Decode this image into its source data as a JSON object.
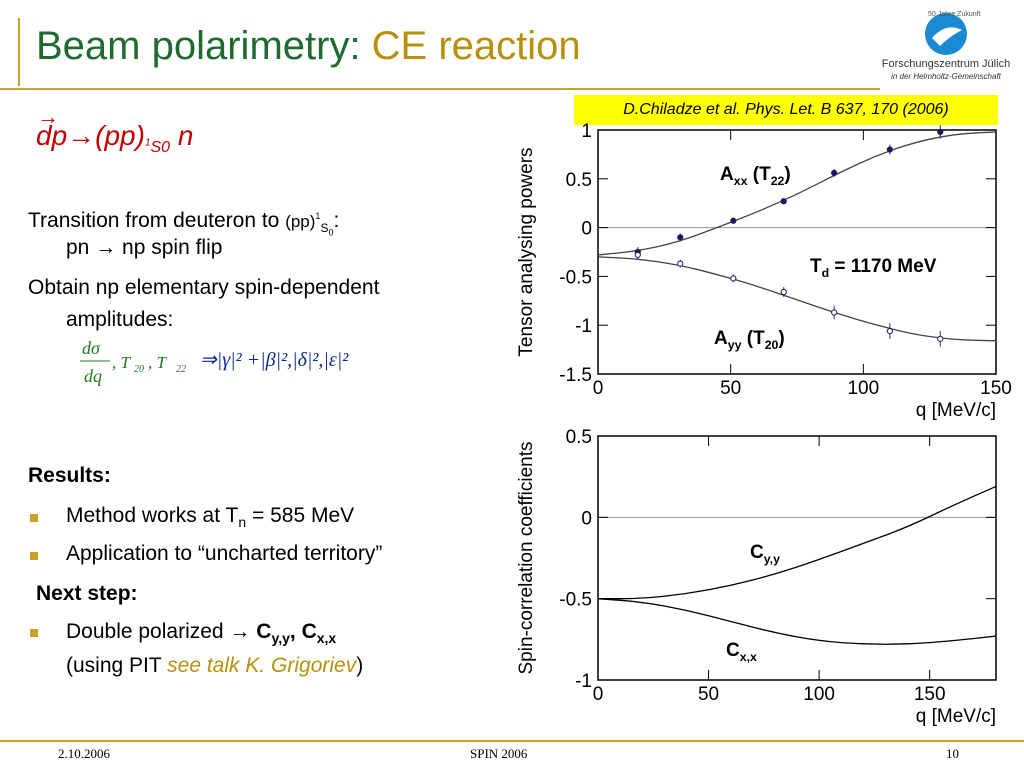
{
  "header": {
    "title_main": "Beam polarimetry: ",
    "title_accent": "CE reaction",
    "logo_name": "Forschungszentrum Jülich",
    "logo_sub": "in der Helmholtz-Gemeinschaft",
    "logo_badge": "50 Jahre Zukunft"
  },
  "reaction": {
    "lhs": "dp→(pp)",
    "state_sup": "1",
    "state_sub": "S0",
    "rhs": " n"
  },
  "body": {
    "transition_text": "Transition from deuteron to ",
    "transition_small": "(pp)",
    "transition_sup": "1",
    "transition_sub": "S",
    "transition_sub0": "0",
    "transition_colon": ":",
    "spin_flip": "pn → np spin flip",
    "obtain_line1": "Obtain np elementary spin-dependent",
    "obtain_line2": "amplitudes:",
    "formula_num": "dσ",
    "formula_den": "dq",
    "formula_t20": ", T",
    "formula_t20_sub": "20",
    "formula_t22": " ,  T",
    "formula_t22_sub": "22",
    "formula_rhs": "⇒|γ|² +|β|²,|δ|²,|ε|²"
  },
  "results": {
    "heading": "Results:",
    "bullet1": "Method works at T",
    "bullet1_sub": "n",
    "bullet1_tail": " = 585 MeV",
    "bullet2": "Application to “uncharted territory”",
    "next_heading": "Next step:",
    "bullet3": "Double polarized → ",
    "bullet3_c1": "C",
    "bullet3_c1_sub": "y,y",
    "bullet3_comma": ", ",
    "bullet3_c2": "C",
    "bullet3_c2_sub": "x,x",
    "bullet3b_open": "(using PIT ",
    "bullet3b_talk": "see talk K. Grigoriev",
    "bullet3b_close": ")"
  },
  "citation": "D.Chiladze et al. Phys. Let. B 637, 170 (2006)",
  "footer": {
    "date": "2.10.2006",
    "conference": "SPIN 2006",
    "page": "10"
  },
  "chart_data": [
    {
      "type": "line",
      "ylabel": "Tensor analysing powers",
      "xlabel": "q [MeV/c]",
      "xlim": [
        0,
        150
      ],
      "ylim": [
        -1.5,
        1.0
      ],
      "xticks": [
        0,
        50,
        100,
        150
      ],
      "yticks": [
        -1.5,
        -1,
        -0.5,
        0,
        0.5,
        1
      ],
      "annotation": "T",
      "annotation_sub": "d",
      "annotation_tail": " = 1170 MeV",
      "series": [
        {
          "name": "A",
          "name_sub": "xx",
          "name_tail": " (T",
          "name_sub2": "22",
          "name_close": ")",
          "x": [
            0,
            15,
            30,
            45,
            60,
            75,
            90,
            105,
            120,
            135,
            150
          ],
          "y": [
            -0.28,
            -0.24,
            -0.15,
            0.0,
            0.16,
            0.34,
            0.55,
            0.74,
            0.88,
            0.96,
            0.98
          ],
          "points_x": [
            15,
            31,
            51,
            70,
            89,
            110,
            129
          ],
          "points_y": [
            -0.25,
            -0.1,
            0.07,
            0.27,
            0.56,
            0.8,
            0.98
          ],
          "points_err": [
            0.05,
            0.04,
            0.03,
            0.03,
            0.04,
            0.05,
            0.07
          ]
        },
        {
          "name": "A",
          "name_sub": "yy",
          "name_tail": " (T",
          "name_sub2": "20",
          "name_close": ")",
          "x": [
            0,
            15,
            30,
            45,
            60,
            75,
            90,
            105,
            120,
            135,
            150
          ],
          "y": [
            -0.3,
            -0.32,
            -0.38,
            -0.48,
            -0.6,
            -0.74,
            -0.88,
            -1.0,
            -1.1,
            -1.15,
            -1.16
          ],
          "points_x": [
            15,
            31,
            51,
            70,
            89,
            110,
            129
          ],
          "points_y": [
            -0.28,
            -0.37,
            -0.52,
            -0.66,
            -0.87,
            -1.06,
            -1.14
          ],
          "points_err": [
            0.04,
            0.04,
            0.04,
            0.05,
            0.07,
            0.08,
            0.08
          ]
        }
      ]
    },
    {
      "type": "line",
      "ylabel": "Spin-correlation coefficients",
      "xlabel": "q [MeV/c]",
      "xlim": [
        0,
        180
      ],
      "ylim": [
        -1.0,
        0.5
      ],
      "xticks": [
        0,
        50,
        100,
        150
      ],
      "yticks": [
        -1,
        -0.5,
        0,
        0.5
      ],
      "series": [
        {
          "name": "C",
          "name_sub": "y,y",
          "x": [
            0,
            20,
            40,
            60,
            80,
            100,
            120,
            140,
            160,
            180
          ],
          "y": [
            -0.5,
            -0.5,
            -0.47,
            -0.42,
            -0.35,
            -0.26,
            -0.16,
            -0.06,
            0.07,
            0.19
          ]
        },
        {
          "name": "C",
          "name_sub": "x,x",
          "x": [
            0,
            20,
            40,
            60,
            80,
            100,
            120,
            140,
            160,
            180
          ],
          "y": [
            -0.5,
            -0.52,
            -0.57,
            -0.64,
            -0.71,
            -0.76,
            -0.78,
            -0.78,
            -0.76,
            -0.73
          ]
        }
      ]
    }
  ]
}
